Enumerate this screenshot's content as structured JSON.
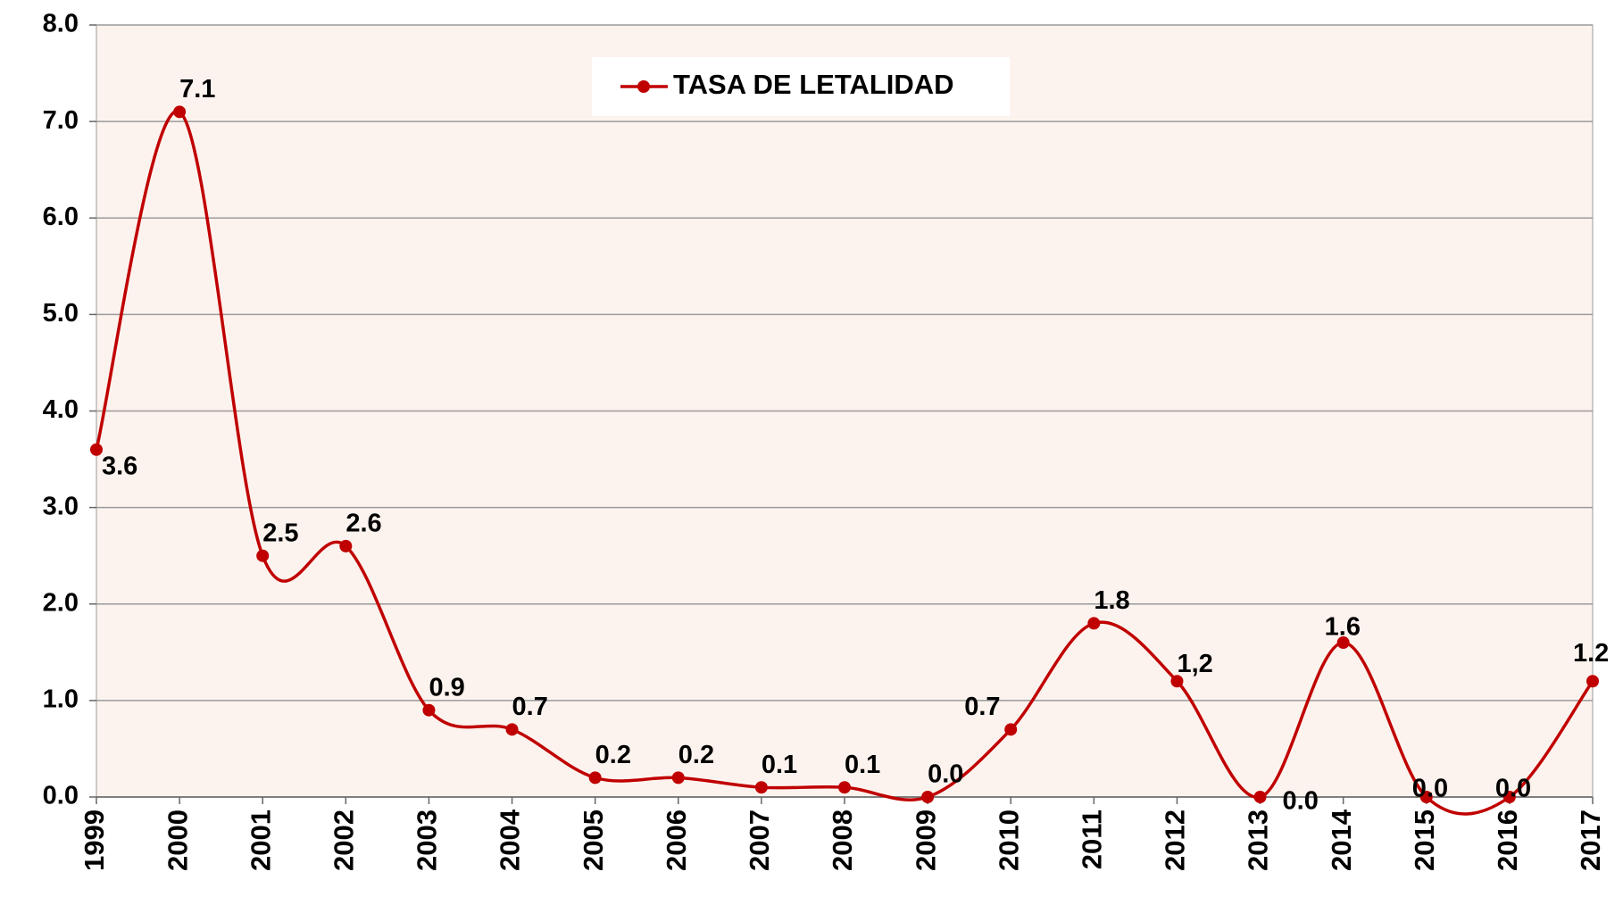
{
  "chart_data": {
    "type": "line",
    "categories": [
      "1999",
      "2000",
      "2001",
      "2002",
      "2003",
      "2004",
      "2005",
      "2006",
      "2007",
      "2008",
      "2009",
      "2010",
      "2011",
      "2012",
      "2013",
      "2014",
      "2015",
      "2016",
      "2017"
    ],
    "series": [
      {
        "name": "TASA DE LETALIDAD",
        "color": "#c00000",
        "values": [
          3.6,
          7.1,
          2.5,
          2.6,
          0.9,
          0.7,
          0.2,
          0.2,
          0.1,
          0.1,
          0.0,
          0.7,
          1.8,
          1.2,
          0.0,
          1.6,
          0.0,
          0.0,
          1.2
        ],
        "value_labels": [
          "3.6",
          "7.1",
          "2.5",
          "2.6",
          "0.9",
          "0.7",
          "0.2",
          "0.2",
          "0.1",
          "0.1",
          "0.0",
          "0.7",
          "1.8",
          "1,2",
          "0.0",
          "1.6",
          "0.0",
          "0.0",
          "1.2"
        ]
      }
    ],
    "ylim": [
      0,
      8
    ],
    "yticks": [
      {
        "value": 0,
        "label": "0.0"
      },
      {
        "value": 1,
        "label": "1.0"
      },
      {
        "value": 2,
        "label": "2.0"
      },
      {
        "value": 3,
        "label": "3.0"
      },
      {
        "value": 4,
        "label": "4.0"
      },
      {
        "value": 5,
        "label": "5.0"
      },
      {
        "value": 6,
        "label": "6.0"
      },
      {
        "value": 7,
        "label": "7.0"
      },
      {
        "value": 8,
        "label": "8.0"
      }
    ],
    "grid": true,
    "legend": "top"
  }
}
